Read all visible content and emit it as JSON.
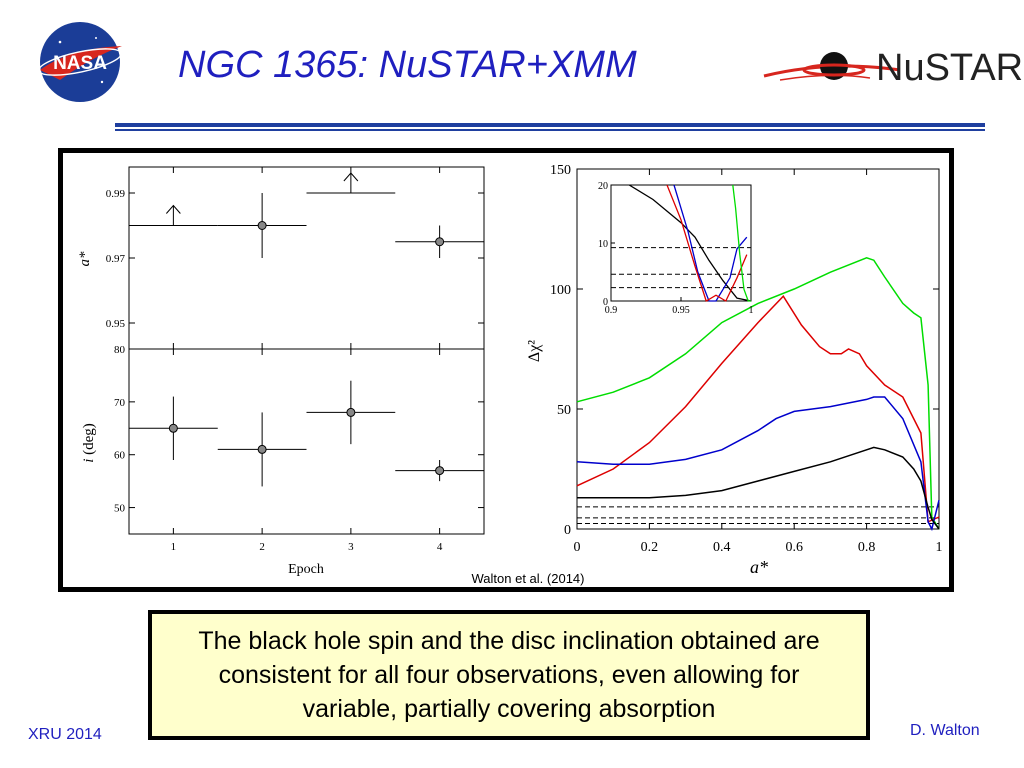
{
  "header": {
    "title": "NGC 1365: NuSTAR+XMM",
    "nasa_logo_text": "NASA",
    "nustar_logo_text": "NuSTAR"
  },
  "figure": {
    "citation": "Walton et al. (2014)"
  },
  "chart_data": [
    {
      "type": "scatter",
      "panel": "left-top",
      "ylabel": "a*",
      "ylim": [
        0.942,
        0.998
      ],
      "yticks": [
        0.95,
        0.97,
        0.99
      ],
      "xlim": [
        0.5,
        4.5
      ],
      "points": [
        {
          "x": 1,
          "y": 0.98,
          "xerr": 0.5,
          "lower_limit": true
        },
        {
          "x": 2,
          "y": 0.98,
          "xerr": 0.5,
          "yerr": 0.01
        },
        {
          "x": 3,
          "y": 0.99,
          "xerr": 0.5,
          "lower_limit": true
        },
        {
          "x": 4,
          "y": 0.975,
          "xerr": 0.5,
          "yerr": 0.005
        }
      ]
    },
    {
      "type": "scatter",
      "panel": "left-bottom",
      "xlabel": "Epoch",
      "ylabel": "i (deg)",
      "ylabel_italic": "i",
      "ylabel_rest": " (deg)",
      "ylim": [
        45,
        80
      ],
      "yticks": [
        50,
        60,
        70,
        80
      ],
      "xticks": [
        1,
        2,
        3,
        4
      ],
      "xlim": [
        0.5,
        4.5
      ],
      "points": [
        {
          "x": 1,
          "y": 65,
          "xerr": 0.5,
          "yerr": 6
        },
        {
          "x": 2,
          "y": 61,
          "xerr": 0.5,
          "yerr": 7
        },
        {
          "x": 3,
          "y": 68,
          "xerr": 0.5,
          "yerr": 6
        },
        {
          "x": 4,
          "y": 57,
          "xerr": 0.5,
          "yerr": 2
        }
      ]
    },
    {
      "type": "line",
      "panel": "right",
      "xlabel": "a*",
      "ylabel": "Δχ²",
      "xlim": [
        0,
        1
      ],
      "ylim": [
        0,
        150
      ],
      "xticks": [
        0,
        0.2,
        0.4,
        0.6,
        0.8,
        1
      ],
      "yticks": [
        0,
        50,
        100,
        150
      ],
      "reference_levels": [
        2.3,
        4.61,
        9.21
      ],
      "series": [
        {
          "color": "#00dd00",
          "x": [
            0,
            0.1,
            0.2,
            0.3,
            0.4,
            0.5,
            0.6,
            0.7,
            0.8,
            0.82,
            0.85,
            0.9,
            0.93,
            0.95,
            0.97,
            0.98,
            1.0
          ],
          "y": [
            53,
            57,
            63,
            73,
            86,
            94,
            100,
            107,
            113,
            112,
            105,
            94,
            90,
            88,
            60,
            5,
            0
          ]
        },
        {
          "color": "#dd0000",
          "x": [
            0,
            0.1,
            0.2,
            0.3,
            0.4,
            0.5,
            0.57,
            0.62,
            0.67,
            0.7,
            0.73,
            0.75,
            0.78,
            0.8,
            0.85,
            0.9,
            0.95,
            0.97,
            1.0
          ],
          "y": [
            18,
            25,
            36,
            51,
            69,
            86,
            97,
            85,
            76,
            73,
            73,
            75,
            73,
            68,
            60,
            55,
            40,
            3,
            5
          ]
        },
        {
          "color": "#0000cc",
          "x": [
            0,
            0.1,
            0.2,
            0.3,
            0.4,
            0.5,
            0.55,
            0.6,
            0.7,
            0.8,
            0.82,
            0.85,
            0.9,
            0.95,
            0.97,
            0.98,
            1.0
          ],
          "y": [
            28,
            27,
            27,
            29,
            33,
            41,
            46,
            49,
            51,
            54,
            55,
            55,
            46,
            28,
            3,
            0,
            12
          ]
        },
        {
          "color": "#000000",
          "x": [
            0,
            0.1,
            0.2,
            0.3,
            0.4,
            0.5,
            0.6,
            0.7,
            0.8,
            0.82,
            0.85,
            0.9,
            0.93,
            0.95,
            0.97,
            0.98,
            1.0
          ],
          "y": [
            13,
            13,
            13,
            14,
            16,
            20,
            24,
            28,
            33,
            34,
            33,
            30,
            25,
            20,
            9,
            4,
            0
          ]
        }
      ]
    },
    {
      "type": "line",
      "panel": "right-inset",
      "xlim": [
        0.9,
        1.0
      ],
      "ylim": [
        0,
        20
      ],
      "xticks": [
        0.9,
        0.95,
        1
      ],
      "yticks": [
        0,
        10,
        20
      ],
      "reference_levels": [
        2.3,
        4.61,
        9.21
      ],
      "series": [
        {
          "color": "#000000",
          "x": [
            0.913,
            0.93,
            0.95,
            0.96,
            0.97,
            0.98,
            0.99,
            1.0
          ],
          "y": [
            20,
            17.5,
            13.5,
            11,
            7,
            3.5,
            0.5,
            0
          ]
        },
        {
          "color": "#0000cc",
          "x": [
            0.945,
            0.955,
            0.962,
            0.97,
            0.975,
            0.985,
            0.99,
            0.997
          ],
          "y": [
            20,
            12,
            5,
            0,
            0,
            4,
            9,
            11
          ]
        },
        {
          "color": "#dd0000",
          "x": [
            0.94,
            0.95,
            0.96,
            0.968,
            0.975,
            0.982,
            0.99,
            0.997
          ],
          "y": [
            20,
            14,
            6,
            0,
            1,
            0,
            4,
            8
          ]
        },
        {
          "color": "#00dd00",
          "x": [
            0.987,
            0.989,
            0.992,
            0.995,
            0.998,
            1.0
          ],
          "y": [
            20,
            16,
            8,
            2,
            0,
            0
          ]
        }
      ]
    }
  ],
  "caption": {
    "text": "The black hole spin and the disc inclination obtained are consistent for all four observations, even allowing for variable, partially covering absorption"
  },
  "footer": {
    "left": "XRU 2014",
    "right": "D. Walton"
  }
}
